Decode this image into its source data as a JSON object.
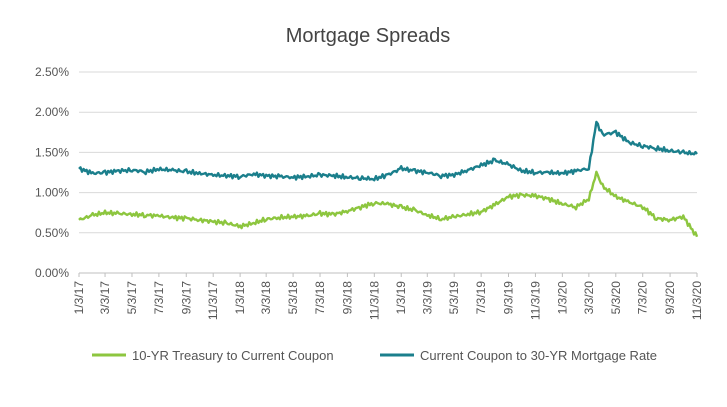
{
  "chart_data": {
    "type": "line",
    "title": "Mortgage Spreads",
    "xlabel": "",
    "ylabel": "",
    "ylim": [
      0,
      2.5
    ],
    "y_unit": "%",
    "y_ticks": [
      "0.00%",
      "0.50%",
      "1.00%",
      "1.50%",
      "2.00%",
      "2.50%"
    ],
    "x_tick_labels": [
      "1/3/17",
      "3/3/17",
      "5/3/17",
      "7/3/17",
      "9/3/17",
      "11/3/17",
      "1/3/18",
      "3/3/18",
      "5/3/18",
      "7/3/18",
      "9/3/18",
      "11/3/18",
      "1/3/19",
      "3/3/19",
      "5/3/19",
      "7/3/19",
      "9/3/19",
      "11/3/19",
      "1/3/20",
      "3/3/20",
      "5/3/20",
      "7/3/20",
      "9/3/20",
      "11/3/20"
    ],
    "grid": "horizontal",
    "legend_position": "bottom",
    "colors": {
      "series1": "#8dc63f",
      "series2": "#1b7f8c",
      "grid": "#d9d9d9"
    },
    "x": [
      "1/3/17",
      "2/3/17",
      "3/3/17",
      "4/3/17",
      "5/3/17",
      "6/3/17",
      "7/3/17",
      "8/3/17",
      "9/3/17",
      "10/3/17",
      "11/3/17",
      "12/3/17",
      "1/3/18",
      "2/3/18",
      "3/3/18",
      "4/3/18",
      "5/3/18",
      "6/3/18",
      "7/3/18",
      "8/3/18",
      "9/3/18",
      "10/3/18",
      "11/3/18",
      "12/3/18",
      "1/3/19",
      "2/3/19",
      "3/3/19",
      "4/3/19",
      "5/3/19",
      "6/3/19",
      "7/3/19",
      "8/3/19",
      "9/3/19",
      "10/3/19",
      "11/3/19",
      "12/3/19",
      "1/3/20",
      "2/3/20",
      "3/3/20",
      "3/20/20",
      "4/3/20",
      "5/3/20",
      "6/3/20",
      "7/3/20",
      "8/3/20",
      "9/3/20",
      "10/3/20",
      "11/3/20"
    ],
    "series": [
      {
        "name": "10-YR Treasury to Current Coupon",
        "values": [
          0.66,
          0.72,
          0.75,
          0.74,
          0.73,
          0.72,
          0.71,
          0.69,
          0.68,
          0.66,
          0.64,
          0.62,
          0.58,
          0.62,
          0.67,
          0.69,
          0.7,
          0.71,
          0.74,
          0.73,
          0.77,
          0.82,
          0.87,
          0.86,
          0.82,
          0.78,
          0.72,
          0.67,
          0.7,
          0.73,
          0.76,
          0.85,
          0.95,
          0.97,
          0.96,
          0.92,
          0.86,
          0.82,
          0.92,
          1.25,
          1.08,
          0.95,
          0.88,
          0.82,
          0.68,
          0.66,
          0.7,
          0.45
        ]
      },
      {
        "name": "Current Coupon to 30-YR Mortgage Rate",
        "values": [
          1.3,
          1.24,
          1.25,
          1.27,
          1.28,
          1.26,
          1.29,
          1.28,
          1.26,
          1.24,
          1.22,
          1.21,
          1.2,
          1.23,
          1.21,
          1.2,
          1.19,
          1.2,
          1.22,
          1.21,
          1.19,
          1.18,
          1.17,
          1.22,
          1.3,
          1.27,
          1.25,
          1.21,
          1.22,
          1.28,
          1.34,
          1.4,
          1.35,
          1.27,
          1.25,
          1.25,
          1.24,
          1.27,
          1.3,
          1.88,
          1.72,
          1.75,
          1.62,
          1.58,
          1.55,
          1.52,
          1.5,
          1.48
        ]
      }
    ]
  }
}
